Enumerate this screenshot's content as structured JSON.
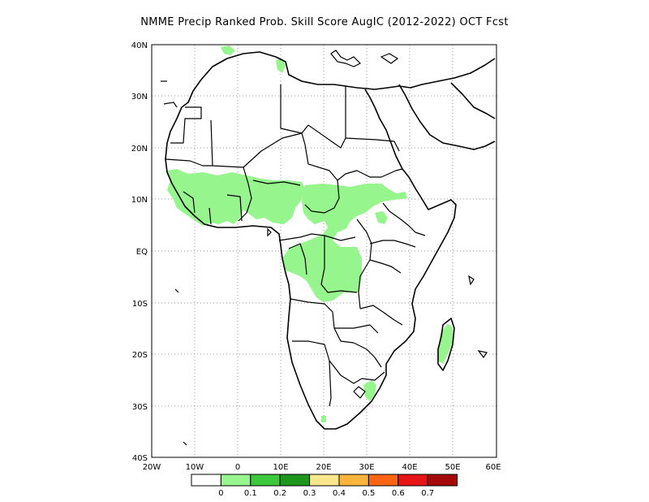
{
  "title": "NMME Precip Ranked Prob. Skill Score AugIC (2012-2022) OCT Fcst",
  "map": {
    "lat_ticks": [
      "40N",
      "30N",
      "20N",
      "10N",
      "EQ",
      "10S",
      "20S",
      "30S",
      "40S"
    ],
    "lon_ticks": [
      "20W",
      "10W",
      "0",
      "10E",
      "20E",
      "30E",
      "40E",
      "50E",
      "60E"
    ],
    "lon_range": [
      -20,
      60
    ],
    "lat_range": [
      -40,
      40
    ],
    "grid": "dotted"
  },
  "legend": {
    "colors": [
      "#ffffff",
      "#96f58c",
      "#3cc83c",
      "#1e961e",
      "#fae68c",
      "#fab43c",
      "#fa6414",
      "#e61414",
      "#a50a0a"
    ],
    "labels": [
      "0",
      "0.1",
      "0.2",
      "0.3",
      "0.4",
      "0.5",
      "0.6",
      "0.7"
    ]
  }
}
